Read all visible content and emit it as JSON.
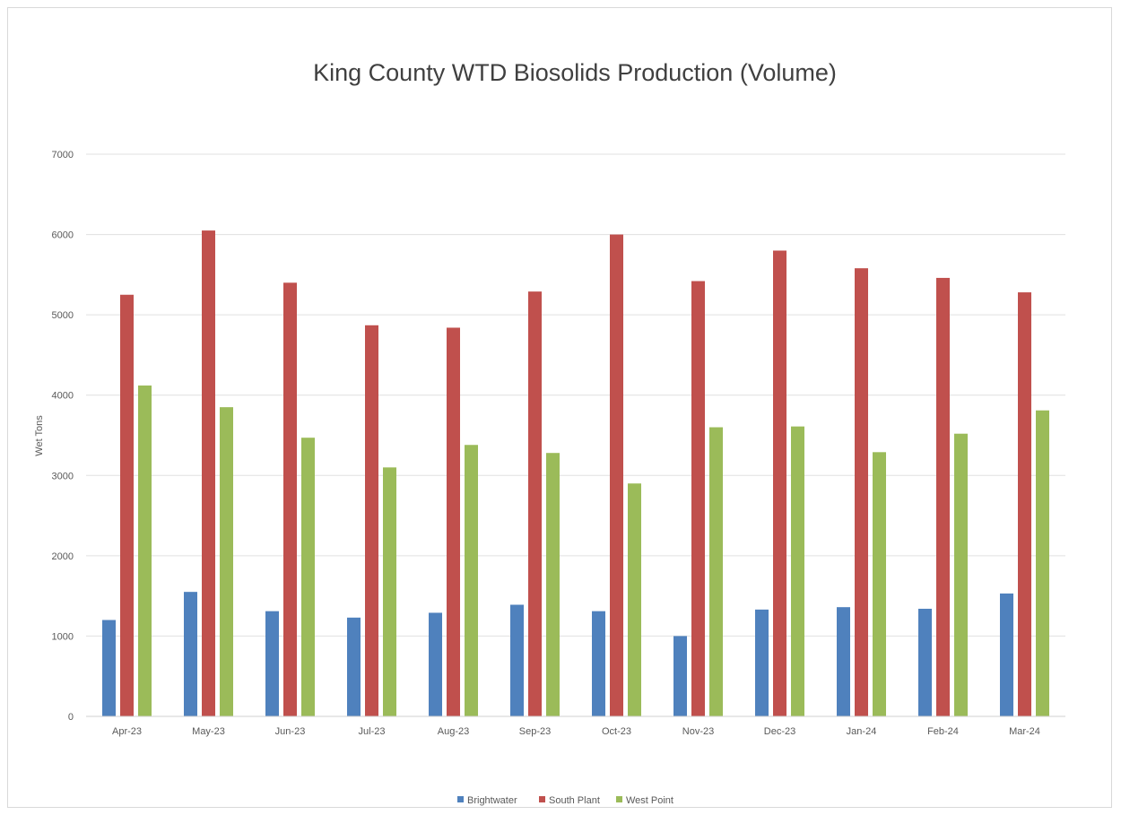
{
  "chart_data": {
    "type": "bar",
    "title": "King County WTD Biosolids Production (Volume)",
    "xlabel": "",
    "ylabel": "Wet Tons",
    "ylim": [
      0,
      7000
    ],
    "yticks": [
      0,
      1000,
      2000,
      3000,
      4000,
      5000,
      6000,
      7000
    ],
    "grid": true,
    "legend_position": "bottom",
    "categories": [
      "Apr-23",
      "May-23",
      "Jun-23",
      "Jul-23",
      "Aug-23",
      "Sep-23",
      "Oct-23",
      "Nov-23",
      "Dec-23",
      "Jan-24",
      "Feb-24",
      "Mar-24"
    ],
    "series": [
      {
        "name": "Brightwater",
        "color": "#4f81bd",
        "values": [
          1200,
          1550,
          1310,
          1230,
          1290,
          1390,
          1310,
          1000,
          1330,
          1360,
          1340,
          1530
        ]
      },
      {
        "name": "South Plant",
        "color": "#c0504d",
        "values": [
          5250,
          6050,
          5400,
          4870,
          4840,
          5290,
          6000,
          5420,
          5800,
          5580,
          5460,
          5280
        ]
      },
      {
        "name": "West Point",
        "color": "#9bbb59",
        "values": [
          4120,
          3850,
          3470,
          3100,
          3380,
          3280,
          2900,
          3600,
          3610,
          3290,
          3520,
          3810
        ]
      }
    ]
  }
}
